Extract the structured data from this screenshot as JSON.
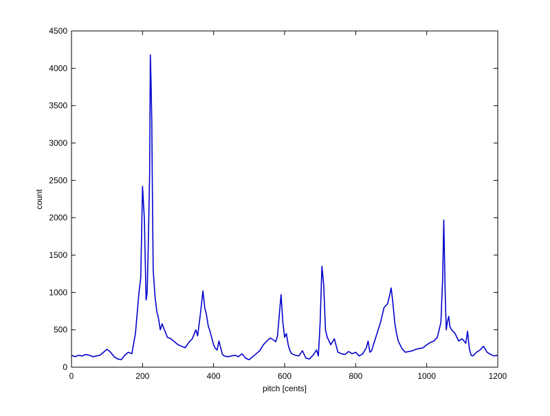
{
  "chart_data": {
    "type": "line",
    "title": "",
    "xlabel": "pitch [cents]",
    "ylabel": "count",
    "xlim": [
      0,
      1200
    ],
    "ylim": [
      0,
      4500
    ],
    "xticks": [
      0,
      200,
      400,
      600,
      800,
      1000,
      1200
    ],
    "xtick_labels": [
      "0",
      "200",
      "400",
      "600",
      "800",
      "1000",
      "1200"
    ],
    "yticks": [
      0,
      500,
      1000,
      1500,
      2000,
      2500,
      3000,
      3500,
      4000,
      4500
    ],
    "ytick_labels": [
      "0",
      "500",
      "1000",
      "1500",
      "2000",
      "2500",
      "3000",
      "3500",
      "4000",
      "4500"
    ],
    "grid": false,
    "legend": "none",
    "line_color": "#0000cc",
    "series": [
      {
        "x": [
          0,
          10,
          20,
          30,
          40,
          50,
          60,
          70,
          80,
          90,
          100,
          110,
          120,
          130,
          140,
          150,
          160,
          170,
          180,
          190,
          195,
          200,
          205,
          210,
          213,
          216,
          220,
          222,
          224,
          226,
          228,
          230,
          235,
          240,
          245,
          250,
          255,
          260,
          270,
          280,
          290,
          300,
          310,
          320,
          330,
          340,
          350,
          355,
          360,
          365,
          370,
          375,
          380,
          385,
          390,
          400,
          405,
          410,
          415,
          420,
          425,
          430,
          440,
          450,
          460,
          470,
          480,
          490,
          500,
          510,
          520,
          530,
          540,
          550,
          560,
          570,
          575,
          580,
          585,
          590,
          595,
          600,
          605,
          610,
          615,
          620,
          630,
          640,
          650,
          660,
          670,
          680,
          690,
          695,
          700,
          705,
          710,
          715,
          720,
          730,
          740,
          750,
          760,
          770,
          780,
          790,
          800,
          810,
          820,
          830,
          835,
          840,
          845,
          850,
          860,
          870,
          880,
          890,
          895,
          900,
          905,
          910,
          915,
          920,
          930,
          940,
          950,
          960,
          970,
          980,
          990,
          1000,
          1010,
          1020,
          1030,
          1040,
          1045,
          1048,
          1052,
          1055,
          1058,
          1062,
          1065,
          1070,
          1080,
          1090,
          1100,
          1110,
          1115,
          1120,
          1125,
          1130,
          1140,
          1150,
          1160,
          1170,
          1180,
          1190,
          1200
        ],
        "y": [
          160,
          140,
          160,
          150,
          170,
          160,
          140,
          150,
          160,
          200,
          240,
          200,
          140,
          110,
          100,
          160,
          200,
          180,
          450,
          1000,
          1200,
          2420,
          2000,
          900,
          1000,
          1600,
          2600,
          4180,
          3800,
          3300,
          2200,
          1300,
          950,
          750,
          650,
          500,
          580,
          520,
          400,
          380,
          340,
          300,
          280,
          260,
          330,
          380,
          500,
          420,
          600,
          800,
          1020,
          800,
          700,
          550,
          480,
          300,
          250,
          230,
          350,
          260,
          170,
          150,
          140,
          150,
          160,
          140,
          180,
          120,
          100,
          140,
          180,
          220,
          300,
          350,
          390,
          360,
          340,
          420,
          700,
          970,
          600,
          400,
          450,
          300,
          220,
          180,
          160,
          150,
          220,
          120,
          110,
          160,
          230,
          150,
          600,
          1350,
          1100,
          500,
          400,
          300,
          380,
          200,
          180,
          170,
          210,
          180,
          200,
          150,
          180,
          260,
          350,
          200,
          220,
          300,
          450,
          600,
          800,
          850,
          950,
          1060,
          850,
          600,
          450,
          350,
          250,
          200,
          210,
          220,
          240,
          250,
          260,
          300,
          330,
          350,
          400,
          600,
          1200,
          1970,
          1000,
          500,
          600,
          680,
          550,
          500,
          450,
          350,
          380,
          320,
          480,
          250,
          160,
          150,
          200,
          230,
          280,
          200,
          170,
          150,
          160
        ]
      }
    ]
  }
}
